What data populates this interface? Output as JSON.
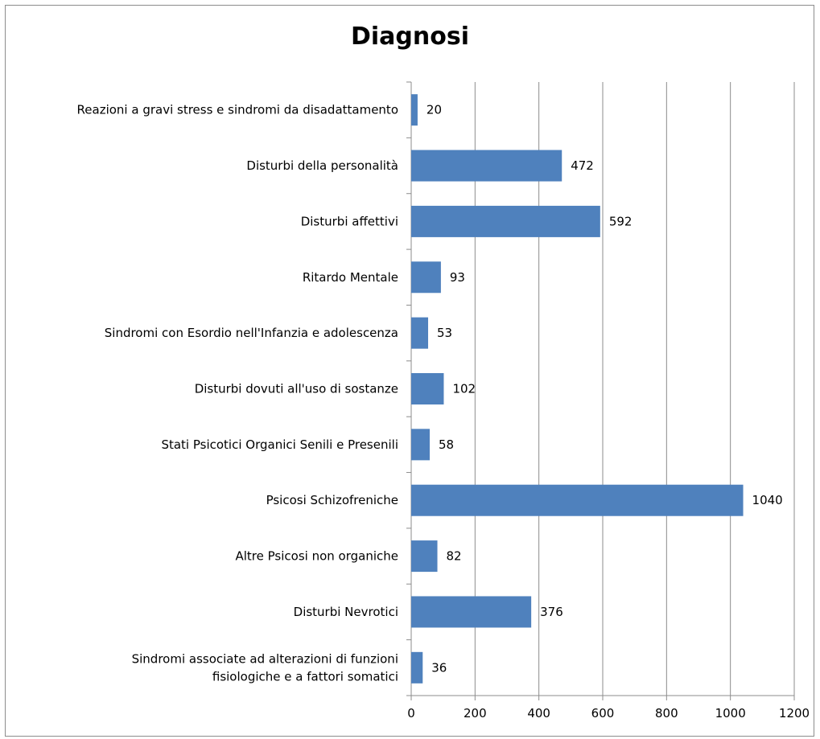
{
  "chart_data": {
    "type": "bar",
    "orientation": "horizontal",
    "title": "Diagnosi",
    "categories": [
      "Reazioni a gravi stress e sindromi da disadattamento",
      "Disturbi della personalità",
      "Disturbi affettivi",
      "Ritardo Mentale",
      "Sindromi con Esordio nell'Infanzia e adolescenza",
      "Disturbi dovuti all'uso di sostanze",
      "Stati Psicotici Organici Senili e Presenili",
      "Psicosi Schizofreniche",
      "Altre Psicosi non organiche",
      "Disturbi Nevrotici",
      "Sindromi associate ad alterazioni di funzioni fisiologiche e a fattori somatici"
    ],
    "category_lines": [
      [
        "Reazioni a gravi stress e sindromi da disadattamento"
      ],
      [
        "Disturbi della personalità"
      ],
      [
        "Disturbi affettivi"
      ],
      [
        "Ritardo Mentale"
      ],
      [
        "Sindromi con Esordio nell'Infanzia e adolescenza"
      ],
      [
        "Disturbi dovuti all'uso di sostanze"
      ],
      [
        "Stati Psicotici Organici Senili e Presenili"
      ],
      [
        "Psicosi Schizofreniche"
      ],
      [
        "Altre Psicosi non organiche"
      ],
      [
        "Disturbi Nevrotici"
      ],
      [
        "Sindromi associate ad alterazioni di funzioni",
        "fisiologiche e a fattori somatici"
      ]
    ],
    "values": [
      20,
      472,
      592,
      93,
      53,
      102,
      58,
      1040,
      82,
      376,
      36
    ],
    "xlim": [
      0,
      1200
    ],
    "ticks": [
      0,
      200,
      400,
      600,
      800,
      1000,
      1200
    ],
    "grid": "vertical",
    "bar_color": "#4f81bd",
    "data_labels": true,
    "legend": "none"
  }
}
